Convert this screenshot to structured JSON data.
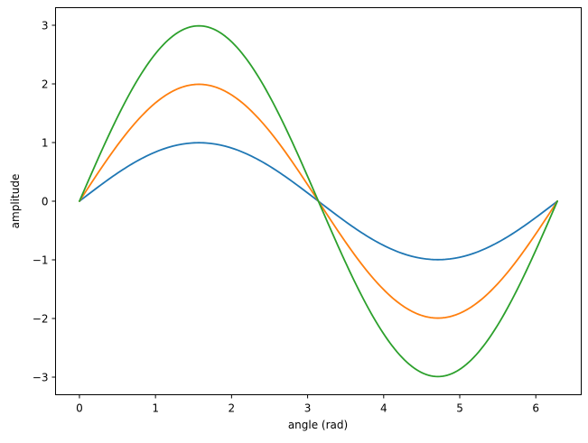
{
  "chart_data": {
    "type": "line",
    "xlabel": "angle (rad)",
    "ylabel": "amplitude",
    "xlim": [
      -0.314,
      6.597
    ],
    "ylim": [
      -3.3,
      3.3
    ],
    "xticks": [
      0,
      1,
      2,
      3,
      4,
      5,
      6
    ],
    "xtick_labels": [
      "0",
      "1",
      "2",
      "3",
      "4",
      "5",
      "6"
    ],
    "yticks": [
      -3,
      -2,
      -1,
      0,
      1,
      2,
      3
    ],
    "ytick_labels": [
      "−3",
      "−2",
      "−1",
      "0",
      "1",
      "2",
      "3"
    ],
    "grid": false,
    "x": [
      0,
      0.3307,
      0.6614,
      0.9921,
      1.3228,
      1.6535,
      1.9842,
      2.3149,
      2.6456,
      2.9762,
      3.3069,
      3.6376,
      3.9683,
      4.299,
      4.6297,
      4.9604,
      5.2911,
      5.6218,
      5.9525,
      6.2832
    ],
    "series": [
      {
        "color": "#1f77b4",
        "values": [
          0,
          0.325,
          0.614,
          0.837,
          0.969,
          0.997,
          0.915,
          0.736,
          0.476,
          0.165,
          -0.165,
          -0.476,
          -0.736,
          -0.915,
          -0.997,
          -0.969,
          -0.837,
          -0.614,
          -0.325,
          0
        ]
      },
      {
        "color": "#ff7f0e",
        "values": [
          0,
          0.649,
          1.228,
          1.673,
          1.939,
          1.993,
          1.83,
          1.471,
          0.953,
          0.33,
          -0.33,
          -0.953,
          -1.471,
          -1.83,
          -1.993,
          -1.939,
          -1.673,
          -1.228,
          -0.649,
          0
        ]
      },
      {
        "color": "#2ca02c",
        "values": [
          0,
          0.974,
          1.842,
          2.51,
          2.908,
          2.99,
          2.745,
          2.207,
          1.429,
          0.495,
          -0.495,
          -1.429,
          -2.207,
          -2.745,
          -2.99,
          -2.908,
          -2.51,
          -1.842,
          -0.974,
          0
        ]
      }
    ]
  }
}
